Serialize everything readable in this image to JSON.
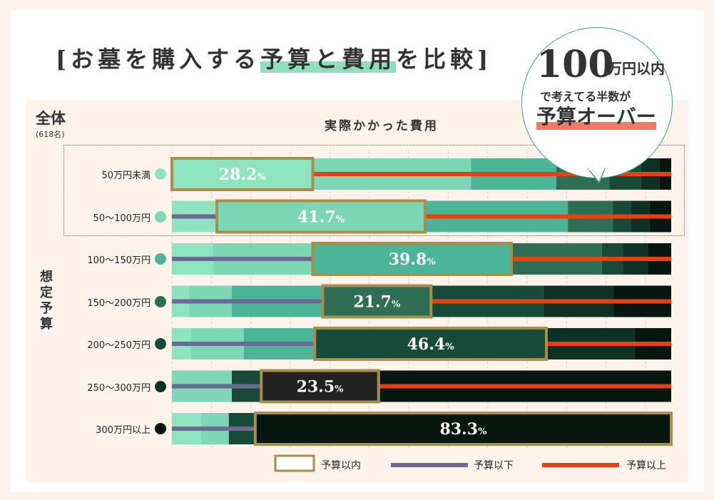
{
  "title": {
    "prefix": "[お墓を購入する",
    "highlight": "予算と費用",
    "suffix": "を比較]"
  },
  "bubble": {
    "number": "100",
    "unit": "万円以内",
    "line2": "で考えてる半数が",
    "line3": "予算オーバー"
  },
  "overall": {
    "label": "全体",
    "sub": "(618名)"
  },
  "header": "実際かかった費用",
  "vertical_label": "想定予算",
  "colors": {
    "accent_gold": "#a78e4a",
    "under_budget": "#6b6a95",
    "over_budget": "#e8400f",
    "categories": [
      "#8ee3c1",
      "#7dd6b5",
      "#4db597",
      "#2e6e55",
      "#184a3a",
      "#0f3025",
      "#06170f"
    ]
  },
  "chart_data": {
    "type": "bar",
    "subtype": "stacked-horizontal-100",
    "x_range": [
      0,
      100
    ],
    "categories": [
      "50万円未満",
      "50〜100万円",
      "100〜150万円",
      "150〜200万円",
      "200〜250万円",
      "250〜300万円",
      "300万円以上"
    ],
    "row_dot_colors": [
      "#8ee3c1",
      "#7dd6b5",
      "#4db597",
      "#2e6e55",
      "#184a3a",
      "#0f3025",
      "#06170f"
    ],
    "rows": [
      {
        "segments": [
          28.2,
          31.7,
          17.1,
          10.6,
          6.3,
          3.7,
          2.4
        ],
        "within_index": 0,
        "within_label": "28.2",
        "under_pct": 0.0
      },
      {
        "segments": [
          9.0,
          41.7,
          28.6,
          9.0,
          3.7,
          3.7,
          4.3
        ],
        "within_index": 1,
        "within_label": "41.7",
        "under_pct": 9.0
      },
      {
        "segments": [
          8.2,
          20.0,
          39.8,
          18.1,
          4.2,
          5.0,
          4.7
        ],
        "within_index": 2,
        "within_label": "39.8",
        "under_pct": 28.2
      },
      {
        "segments": [
          3.4,
          8.6,
          18.2,
          21.7,
          22.5,
          14.1,
          11.5
        ],
        "within_index": 3,
        "within_label": "21.7",
        "under_pct": 30.2
      },
      {
        "segments": [
          3.8,
          10.6,
          14.2,
          0,
          46.4,
          17.7,
          7.3
        ],
        "within_index": 4,
        "within_label": "46.4",
        "under_pct": 28.6
      },
      {
        "segments": [
          0,
          12.0,
          0,
          0,
          5.9,
          23.5,
          58.6
        ],
        "within_index": 5,
        "within_label": "23.5",
        "under_pct": 17.9
      },
      {
        "segments": [
          5.8,
          5.6,
          0,
          0,
          5.3,
          0,
          83.3
        ],
        "within_index": 6,
        "within_label": "83.3",
        "under_pct": 16.7
      }
    ],
    "percent_sign": "%",
    "legend": [
      {
        "label": "予算以内",
        "kind": "box"
      },
      {
        "label": "予算以下",
        "kind": "purple-line"
      },
      {
        "label": "予算以上",
        "kind": "red-line"
      }
    ]
  }
}
